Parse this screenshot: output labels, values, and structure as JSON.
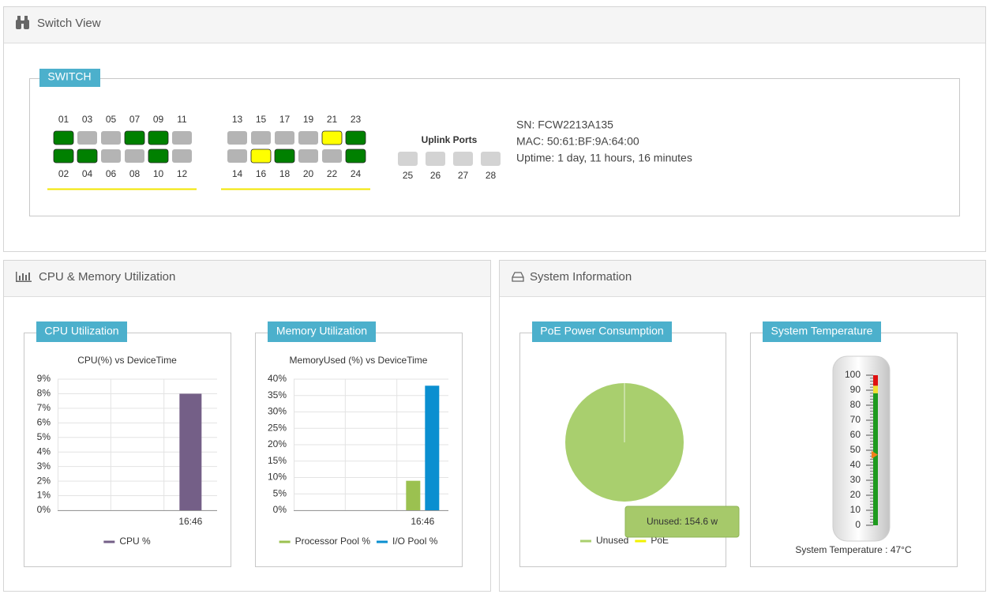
{
  "switch_view": {
    "title": "Switch View",
    "badge": "SWITCH",
    "port_groups": [
      {
        "top": {
          "labels": [
            "01",
            "03",
            "05",
            "07",
            "09",
            "11"
          ],
          "colors": [
            "#008000",
            "#b4b4b4",
            "#b4b4b4",
            "#008000",
            "#008000",
            "#b4b4b4"
          ]
        },
        "bottom": {
          "labels": [
            "02",
            "04",
            "06",
            "08",
            "10",
            "12"
          ],
          "colors": [
            "#008000",
            "#008000",
            "#b4b4b4",
            "#b4b4b4",
            "#008000",
            "#b4b4b4"
          ]
        }
      },
      {
        "top": {
          "labels": [
            "13",
            "15",
            "17",
            "19",
            "21",
            "23"
          ],
          "colors": [
            "#b4b4b4",
            "#b4b4b4",
            "#b4b4b4",
            "#b4b4b4",
            "#ffff00",
            "#008000"
          ]
        },
        "bottom": {
          "labels": [
            "14",
            "16",
            "18",
            "20",
            "22",
            "24"
          ],
          "colors": [
            "#b4b4b4",
            "#ffff00",
            "#008000",
            "#b4b4b4",
            "#b4b4b4",
            "#008000"
          ]
        }
      }
    ],
    "uplink": {
      "title": "Uplink Ports",
      "labels": [
        "25",
        "26",
        "27",
        "28"
      ],
      "color": "#d3d3d3"
    },
    "info": [
      "SN: FCW2213A135",
      "MAC: 50:61:BF:9A:64:00",
      "Uptime: 1 day, 11 hours, 16 minutes"
    ]
  },
  "cpu_memory": {
    "title": "CPU & Memory Utilization",
    "charts": [
      {
        "badge": "CPU Utilization",
        "chart_data": {
          "type": "bar",
          "title": "CPU(%) vs DeviceTime",
          "categories": [
            "16:46"
          ],
          "series": [
            {
              "name": "CPU %",
              "color": "#745f87",
              "values": [
                8
              ]
            }
          ],
          "ylim": [
            0,
            9
          ],
          "yticks": [
            {
              "value": 0,
              "label": "0%"
            },
            {
              "value": 1,
              "label": "1%"
            },
            {
              "value": 2,
              "label": "2%"
            },
            {
              "value": 3,
              "label": "3%"
            },
            {
              "value": 4,
              "label": "4%"
            },
            {
              "value": 5,
              "label": "5%"
            },
            {
              "value": 6,
              "label": "6%"
            },
            {
              "value": 7,
              "label": "7%"
            },
            {
              "value": 8,
              "label": "8%"
            },
            {
              "value": 9,
              "label": "9%"
            }
          ],
          "grid": true
        }
      },
      {
        "badge": "Memory Utilization",
        "chart_data": {
          "type": "bar",
          "title": "MemoryUsed (%) vs DeviceTime",
          "categories": [
            "16:46"
          ],
          "series": [
            {
              "name": "Processor Pool %",
              "color": "#9bc150",
              "values": [
                9
              ]
            },
            {
              "name": "I/O Pool %",
              "color": "#0a8fd0",
              "values": [
                38
              ]
            }
          ],
          "ylim": [
            0,
            40
          ],
          "yticks": [
            {
              "value": 0,
              "label": "0%"
            },
            {
              "value": 5,
              "label": "5%"
            },
            {
              "value": 10,
              "label": "10%"
            },
            {
              "value": 15,
              "label": "15%"
            },
            {
              "value": 20,
              "label": "20%"
            },
            {
              "value": 25,
              "label": "25%"
            },
            {
              "value": 30,
              "label": "30%"
            },
            {
              "value": 35,
              "label": "35%"
            },
            {
              "value": 40,
              "label": "40%"
            }
          ],
          "grid": true
        }
      }
    ]
  },
  "system_info": {
    "title": "System Information",
    "poe": {
      "badge": "PoE Power Consumption",
      "chart_data": {
        "type": "pie",
        "categories": [
          "Unused",
          "PoE"
        ],
        "values": [
          154.6,
          0
        ],
        "colors": [
          "#a9cf6e",
          "#f2f200"
        ],
        "value_labels": [
          "Unused: 154.6 w",
          null
        ]
      }
    },
    "temperature": {
      "badge": "System Temperature",
      "chart_data": {
        "type": "thermometer",
        "value": 47,
        "value_label": "System Temperature : 47°C",
        "ylim": [
          0,
          100
        ],
        "yticks": [
          0,
          10,
          20,
          30,
          40,
          50,
          60,
          70,
          80,
          90,
          100
        ],
        "bands": [
          {
            "from": 0,
            "to": 88,
            "color": "#1e9a1e"
          },
          {
            "from": 88,
            "to": 93,
            "color": "#f0e030"
          },
          {
            "from": 93,
            "to": 100,
            "color": "#e01010"
          }
        ],
        "marker_color": "#f07f1c"
      }
    }
  }
}
